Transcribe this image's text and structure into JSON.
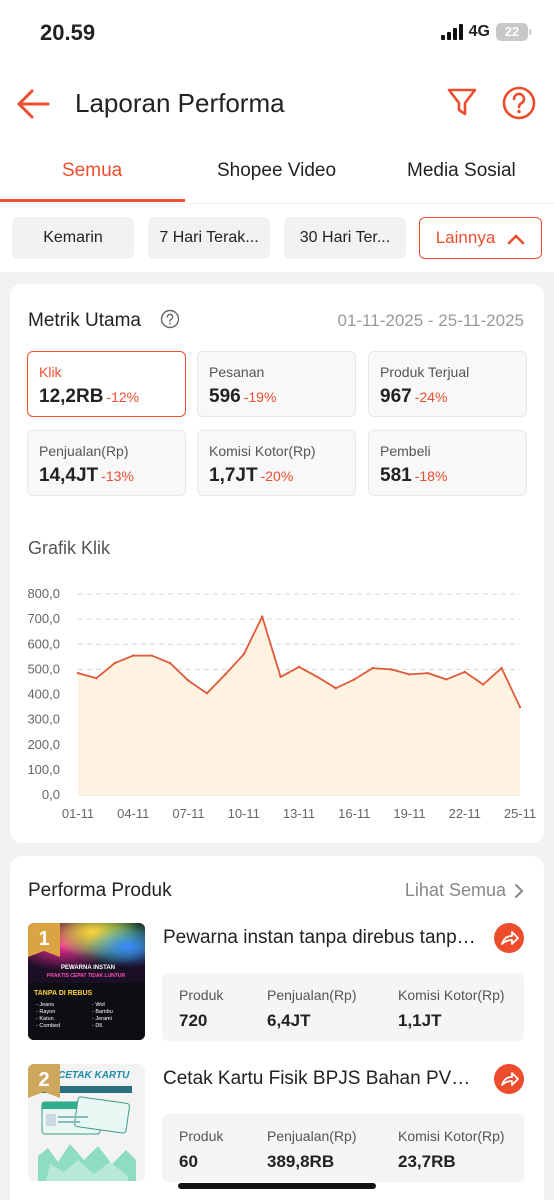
{
  "status": {
    "time": "20.59",
    "network": "4G",
    "battery": "22"
  },
  "header": {
    "title": "Laporan Performa"
  },
  "tabs": [
    {
      "label": "Semua"
    },
    {
      "label": "Shopee Video"
    },
    {
      "label": "Media Sosial"
    }
  ],
  "date_filters": [
    {
      "label": "Kemarin"
    },
    {
      "label": "7 Hari Terak..."
    },
    {
      "label": "30 Hari Ter..."
    }
  ],
  "more_filter": {
    "label": "Lainnya"
  },
  "metrics": {
    "title": "Metrik Utama",
    "date_range": "01-11-2025 - 25-11-2025",
    "items": [
      {
        "label": "Klik",
        "value": "12,2RB",
        "change": "-12%"
      },
      {
        "label": "Pesanan",
        "value": "596",
        "change": "-19%"
      },
      {
        "label": "Produk Terjual",
        "value": "967",
        "change": "-24%"
      },
      {
        "label": "Penjualan(Rp)",
        "value": "14,4JT",
        "change": "-13%"
      },
      {
        "label": "Komisi Kotor(Rp)",
        "value": "1,7JT",
        "change": "-20%"
      },
      {
        "label": "Pembeli",
        "value": "581",
        "change": "-18%"
      }
    ]
  },
  "chart_title": "Grafik Klik",
  "chart_data": {
    "type": "area",
    "title": "Grafik Klik",
    "xlabel": "",
    "ylabel": "",
    "ylim": [
      0,
      800
    ],
    "y_ticks": [
      "0,0",
      "100,0",
      "200,0",
      "300,0",
      "400,0",
      "500,0",
      "600,0",
      "700,0",
      "800,0"
    ],
    "x_ticks": [
      "01-11",
      "04-11",
      "07-11",
      "10-11",
      "13-11",
      "16-11",
      "19-11",
      "22-11",
      "25-11"
    ],
    "x": [
      "01-11",
      "02-11",
      "03-11",
      "04-11",
      "05-11",
      "06-11",
      "07-11",
      "08-11",
      "09-11",
      "10-11",
      "11-11",
      "12-11",
      "13-11",
      "14-11",
      "15-11",
      "16-11",
      "17-11",
      "18-11",
      "19-11",
      "20-11",
      "21-11",
      "22-11",
      "23-11",
      "24-11",
      "25-11"
    ],
    "values": [
      485,
      465,
      525,
      555,
      555,
      525,
      455,
      405,
      480,
      560,
      710,
      470,
      510,
      470,
      425,
      460,
      505,
      500,
      480,
      485,
      460,
      490,
      440,
      505,
      350
    ],
    "grid": true,
    "line_color": "#e05a3a",
    "fill_color": "#fdf3e0"
  },
  "performance": {
    "title": "Performa Produk",
    "see_all": "Lihat Semua",
    "stat_labels": {
      "produk": "Produk",
      "penjualan": "Penjualan(Rp)",
      "komisi": "Komisi Kotor(Rp)"
    },
    "products": [
      {
        "rank": "1",
        "name": "Pewarna instan tanpa direbus tanpa luntur",
        "produk": "720",
        "penjualan": "6,4JT",
        "komisi": "1,1JT",
        "thumb_text": {
          "line1": "PEWARNA INSTAN",
          "line2": "PRAKTIS   CEPAT   TIDAK LUNTUR",
          "line3": "TANPA DI REBUS",
          "col1": "- Jeans\n- Rayon\n- Katun\n- Combed",
          "col2": "- Wol\n- Bambu\n- Jerami\n- Dll."
        }
      },
      {
        "rank": "2",
        "name": "Cetak Kartu Fisik BPJS Bahan PVC ID Card",
        "produk": "60",
        "penjualan": "389,8RB",
        "komisi": "23,7RB",
        "thumb_text": {
          "line1": "CETAK KARTU"
        }
      }
    ]
  },
  "colors": {
    "accent": "#ee4d2d",
    "gold": "#d9a441",
    "silver": "#b0b0b0"
  }
}
